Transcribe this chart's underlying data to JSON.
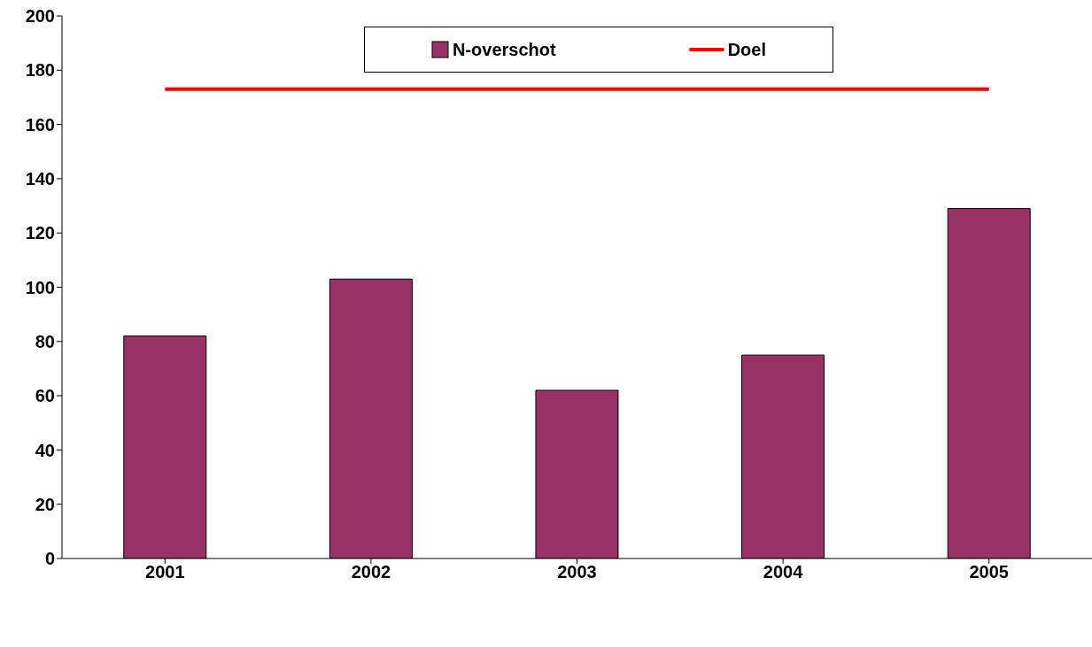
{
  "chart_data": {
    "type": "bar",
    "categories": [
      "2001",
      "2002",
      "2003",
      "2004",
      "2005"
    ],
    "series": [
      {
        "name": "N-overschot",
        "color": "#993366",
        "values": [
          82,
          103,
          62,
          75,
          129
        ]
      },
      {
        "name": "Doel",
        "type": "line",
        "color": "#ff0000",
        "values": [
          173,
          173,
          173,
          173,
          173
        ]
      }
    ],
    "ylim": [
      0,
      200
    ],
    "yticks": [
      0,
      20,
      40,
      60,
      80,
      100,
      120,
      140,
      160,
      180,
      200
    ],
    "grid": false,
    "legend": "top",
    "marker": "none",
    "line_style": "solid"
  }
}
